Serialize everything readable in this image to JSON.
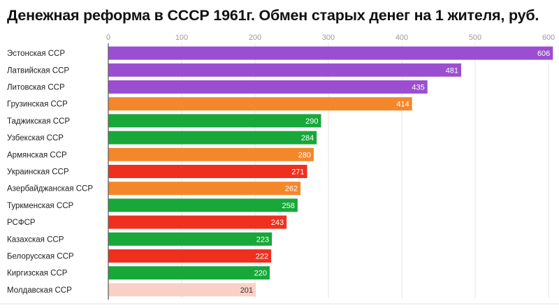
{
  "chart_data": {
    "type": "bar",
    "orientation": "horizontal",
    "title": "Денежная реформа в СССР 1961г. Обмен старых денег на 1 жителя, руб.",
    "xlim": [
      0,
      600
    ],
    "ticks": [
      "0",
      "100",
      "200",
      "300",
      "400",
      "500",
      "600"
    ],
    "grid": true,
    "categories": [
      "Эстонская ССР",
      "Латвийская ССР",
      "Литовская ССР",
      "Грузинская ССР",
      "Таджикская ССР",
      "Узбекская ССР",
      "Армянская ССР",
      "Украинская ССР",
      "Азербайджанская ССР",
      "Туркменская ССР",
      "РСФСР",
      "Казахская ССР",
      "Белорусская ССР",
      "Киргизская ССР",
      "Молдавская ССР"
    ],
    "values": [
      606,
      481,
      435,
      414,
      290,
      284,
      280,
      271,
      262,
      258,
      243,
      223,
      222,
      220,
      201
    ],
    "bar_colors": [
      "#9b4fd0",
      "#9b4fd0",
      "#9b4fd0",
      "#f5872b",
      "#18a83a",
      "#18a83a",
      "#f5872b",
      "#f0301f",
      "#f5872b",
      "#18a83a",
      "#f0301f",
      "#18a83a",
      "#f0301f",
      "#18a83a",
      "#fad0c6"
    ],
    "label_colors": [
      "#ffffff",
      "#ffffff",
      "#ffffff",
      "#ffffff",
      "#ffffff",
      "#ffffff",
      "#ffffff",
      "#ffffff",
      "#ffffff",
      "#ffffff",
      "#ffffff",
      "#ffffff",
      "#ffffff",
      "#ffffff",
      "#333333"
    ]
  }
}
